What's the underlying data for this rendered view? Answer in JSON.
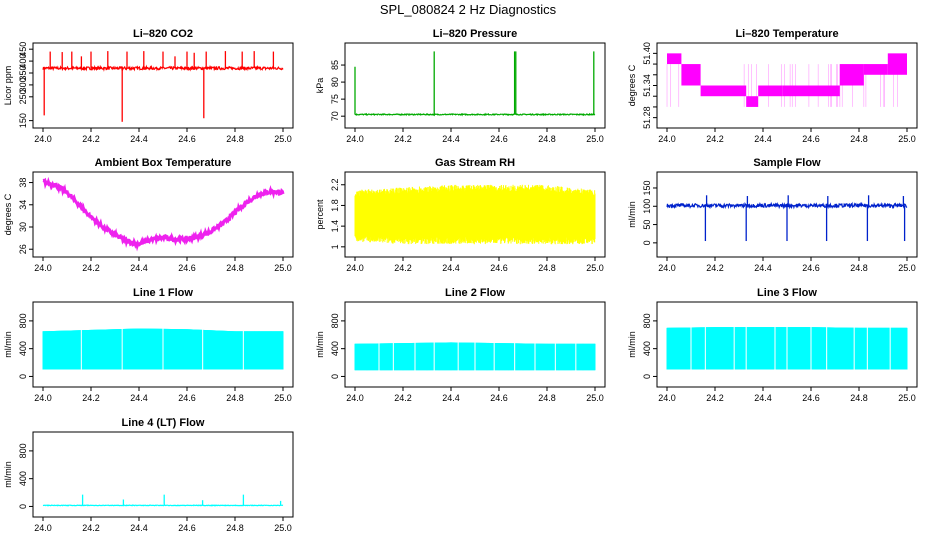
{
  "main_title": "SPL_080824  2 Hz Diagnostics",
  "chart_data": [
    {
      "type": "line",
      "title": "Li–820 CO2",
      "ylabel": "Licor ppm",
      "color": "#ff0000",
      "xlim": [
        24.0,
        25.0
      ],
      "ylim": [
        140,
        455
      ],
      "yticks": [
        150,
        250,
        300,
        350,
        400,
        450
      ],
      "xticks": [
        "24.0",
        "24.2",
        "24.4",
        "24.6",
        "24.8",
        "25.0"
      ],
      "series": [
        {
          "name": "CO2",
          "baseline": 370,
          "noise": 6,
          "spikes": [
            {
              "x": 24.03,
              "y": 440
            },
            {
              "x": 24.08,
              "y": 438
            },
            {
              "x": 24.12,
              "y": 440
            },
            {
              "x": 24.16,
              "y": 420
            },
            {
              "x": 24.2,
              "y": 440
            },
            {
              "x": 24.27,
              "y": 442
            },
            {
              "x": 24.33,
              "y": 145
            },
            {
              "x": 24.35,
              "y": 440
            },
            {
              "x": 24.42,
              "y": 442
            },
            {
              "x": 24.5,
              "y": 440
            },
            {
              "x": 24.55,
              "y": 420
            },
            {
              "x": 24.6,
              "y": 440
            },
            {
              "x": 24.63,
              "y": 435
            },
            {
              "x": 24.67,
              "y": 160
            },
            {
              "x": 24.68,
              "y": 440
            },
            {
              "x": 24.76,
              "y": 442
            },
            {
              "x": 24.83,
              "y": 440
            },
            {
              "x": 24.88,
              "y": 442
            },
            {
              "x": 24.96,
              "y": 440
            },
            {
              "x": 24.005,
              "y": 172
            }
          ]
        }
      ]
    },
    {
      "type": "line",
      "title": "Li–820 Pressure",
      "ylabel": "kPa",
      "color": "#00aa00",
      "xlim": [
        24.0,
        25.0
      ],
      "ylim": [
        68,
        90
      ],
      "yticks": [
        70,
        75,
        80,
        85
      ],
      "xticks": [
        "24.0",
        "24.2",
        "24.4",
        "24.6",
        "24.8",
        "25.0"
      ],
      "series": [
        {
          "name": "Pressure",
          "baseline": 70.5,
          "noise": 0.15,
          "spikes": [
            {
              "x": 24.0,
              "y": 84.5
            },
            {
              "x": 24.33,
              "y": 89
            },
            {
              "x": 24.665,
              "y": 89
            },
            {
              "x": 24.67,
              "y": 89
            },
            {
              "x": 24.995,
              "y": 89
            }
          ]
        }
      ]
    },
    {
      "type": "line",
      "title": "Li–820 Temperature",
      "ylabel": "degrees C",
      "color": "#ff00ff",
      "xlim": [
        24.0,
        25.0
      ],
      "ylim": [
        51.27,
        51.41
      ],
      "yticks": [
        51.28,
        51.3,
        51.32,
        51.34,
        51.36,
        51.38,
        51.4
      ],
      "ytick_labels": [
        "51.28",
        "",
        "",
        "51.34",
        "",
        "",
        "51.40"
      ],
      "xticks": [
        "24.0",
        "24.2",
        "24.4",
        "24.6",
        "24.8",
        "25.0"
      ],
      "series": [
        {
          "name": "Temperature",
          "steps": [
            [
              24.0,
              24.06,
              51.38,
              51.4
            ],
            [
              24.06,
              24.14,
              51.34,
              51.38
            ],
            [
              24.14,
              24.33,
              51.32,
              51.34
            ],
            [
              24.33,
              24.38,
              51.3,
              51.32
            ],
            [
              24.38,
              24.48,
              51.32,
              51.34
            ],
            [
              24.48,
              24.72,
              51.32,
              51.34
            ],
            [
              24.72,
              24.82,
              51.34,
              51.38
            ],
            [
              24.82,
              24.92,
              51.36,
              51.38
            ],
            [
              24.92,
              25.0,
              51.36,
              51.4
            ]
          ]
        }
      ]
    },
    {
      "type": "line",
      "title": "Ambient Box Temperature",
      "ylabel": "degrees C",
      "color": "#ee22ee",
      "xlim": [
        24.0,
        25.0
      ],
      "ylim": [
        25.5,
        39
      ],
      "yticks": [
        26,
        30,
        34,
        38
      ],
      "xticks": [
        "24.0",
        "24.2",
        "24.4",
        "24.6",
        "24.8",
        "25.0"
      ],
      "series": [
        {
          "name": "Ambient",
          "x": [
            24.0,
            24.05,
            24.1,
            24.15,
            24.2,
            24.25,
            24.3,
            24.35,
            24.4,
            24.45,
            24.5,
            24.55,
            24.6,
            24.65,
            24.7,
            24.75,
            24.8,
            24.85,
            24.9,
            24.95,
            25.0
          ],
          "y": [
            38.2,
            37.6,
            36.2,
            34,
            31.8,
            30,
            28.6,
            27.4,
            26.9,
            27.7,
            28.1,
            27.8,
            27.8,
            28.3,
            29.2,
            30.6,
            32.6,
            34.5,
            35.9,
            36.4,
            36.2
          ],
          "noise": 0.35
        }
      ]
    },
    {
      "type": "area",
      "title": "Gas Stream RH",
      "ylabel": "percent",
      "color": "#ffff00",
      "xlim": [
        24.0,
        25.0
      ],
      "ylim": [
        0.9,
        2.35
      ],
      "yticks": [
        1.0,
        1.4,
        1.8,
        2.2
      ],
      "xticks": [
        "24.0",
        "24.2",
        "24.4",
        "24.6",
        "24.8",
        "25.0"
      ],
      "series": [
        {
          "name": "RH",
          "band": [
            [
              24.0,
              1.1,
              2.1
            ],
            [
              24.2,
              1.05,
              2.15
            ],
            [
              24.4,
              1.05,
              2.2
            ],
            [
              24.6,
              1.05,
              2.2
            ],
            [
              24.8,
              1.05,
              2.2
            ],
            [
              25.0,
              1.05,
              2.1
            ]
          ]
        }
      ]
    },
    {
      "type": "line",
      "title": "Sample Flow",
      "ylabel": "ml/min",
      "color": "#0022cc",
      "xlim": [
        24.0,
        25.0
      ],
      "ylim": [
        -25,
        180
      ],
      "yticks": [
        0,
        50,
        100,
        150
      ],
      "xticks": [
        "24.0",
        "24.2",
        "24.4",
        "24.6",
        "24.8",
        "25.0"
      ],
      "series": [
        {
          "name": "Sample",
          "baseline": 102,
          "noise": 5,
          "spikes": [
            {
              "x": 24.16,
              "y": 5
            },
            {
              "x": 24.33,
              "y": 5
            },
            {
              "x": 24.5,
              "y": 5
            },
            {
              "x": 24.665,
              "y": 5
            },
            {
              "x": 24.835,
              "y": 5
            },
            {
              "x": 24.99,
              "y": 5
            },
            {
              "x": 24.165,
              "y": 130
            },
            {
              "x": 24.335,
              "y": 128
            },
            {
              "x": 24.505,
              "y": 130
            },
            {
              "x": 24.67,
              "y": 128
            },
            {
              "x": 24.84,
              "y": 130
            },
            {
              "x": 24.985,
              "y": 128
            }
          ]
        }
      ]
    },
    {
      "type": "area",
      "title": "Line 1 Flow",
      "ylabel": "ml/min",
      "color": "#00ffff",
      "xlim": [
        24.0,
        25.0
      ],
      "ylim": [
        -80,
        1000
      ],
      "yticks": [
        0,
        400,
        800
      ],
      "xticks": [
        "24.0",
        "24.2",
        "24.4",
        "24.6",
        "24.8",
        "25.0"
      ],
      "series": [
        {
          "name": "Line1",
          "band": [
            [
              24.0,
              100,
              650
            ],
            [
              24.2,
              100,
              670
            ],
            [
              24.4,
              100,
              690
            ],
            [
              24.6,
              100,
              680
            ],
            [
              24.8,
              100,
              650
            ],
            [
              25.0,
              100,
              650
            ]
          ],
          "gaps": [
            24.16,
            24.33,
            24.5,
            24.665,
            24.835
          ]
        }
      ]
    },
    {
      "type": "area",
      "title": "Line 2 Flow",
      "ylabel": "ml/min",
      "color": "#00ffff",
      "xlim": [
        24.0,
        25.0
      ],
      "ylim": [
        -80,
        1000
      ],
      "yticks": [
        0,
        400,
        800
      ],
      "xticks": [
        "24.0",
        "24.2",
        "24.4",
        "24.6",
        "24.8",
        "25.0"
      ],
      "series": [
        {
          "name": "Line2",
          "band": [
            [
              24.0,
              90,
              470
            ],
            [
              24.2,
              90,
              480
            ],
            [
              24.4,
              90,
              490
            ],
            [
              24.6,
              90,
              480
            ],
            [
              24.8,
              90,
              470
            ],
            [
              25.0,
              90,
              470
            ]
          ],
          "gaps": [
            24.16,
            24.33,
            24.5,
            24.665,
            24.835,
            24.1,
            24.25,
            24.43,
            24.58,
            24.75,
            24.92
          ]
        }
      ]
    },
    {
      "type": "area",
      "title": "Line 3 Flow",
      "ylabel": "ml/min",
      "color": "#00ffff",
      "xlim": [
        24.0,
        25.0
      ],
      "ylim": [
        -80,
        1000
      ],
      "yticks": [
        0,
        400,
        800
      ],
      "xticks": [
        "24.0",
        "24.2",
        "24.4",
        "24.6",
        "24.8",
        "25.0"
      ],
      "series": [
        {
          "name": "Line3",
          "band": [
            [
              24.0,
              100,
              700
            ],
            [
              24.2,
              100,
              710
            ],
            [
              24.4,
              100,
              710
            ],
            [
              24.6,
              100,
              710
            ],
            [
              24.8,
              100,
              700
            ],
            [
              25.0,
              100,
              700
            ]
          ],
          "gaps": [
            24.16,
            24.33,
            24.5,
            24.665,
            24.835,
            24.1,
            24.28,
            24.45,
            24.6,
            24.78,
            24.93
          ]
        }
      ]
    },
    {
      "type": "line",
      "title": "Line 4 (LT) Flow",
      "ylabel": "ml/min",
      "color": "#00ffff",
      "xlim": [
        24.0,
        25.0
      ],
      "ylim": [
        -80,
        1000
      ],
      "yticks": [
        0,
        400,
        800
      ],
      "xticks": [
        "24.0",
        "24.2",
        "24.4",
        "24.6",
        "24.8",
        "25.0"
      ],
      "series": [
        {
          "name": "Line4",
          "baseline": 15,
          "noise": 4,
          "spikes": [
            {
              "x": 24.165,
              "y": 170
            },
            {
              "x": 24.335,
              "y": 100
            },
            {
              "x": 24.505,
              "y": 170
            },
            {
              "x": 24.665,
              "y": 90
            },
            {
              "x": 24.835,
              "y": 170
            },
            {
              "x": 24.99,
              "y": 80
            }
          ]
        }
      ]
    }
  ]
}
